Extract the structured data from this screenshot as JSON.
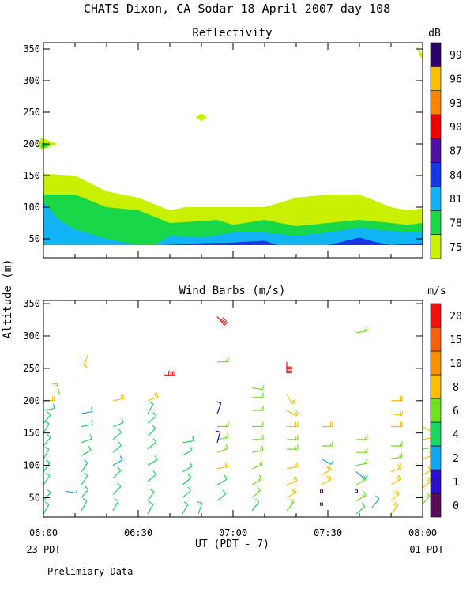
{
  "title": "CHATS Dixon, CA  Sodar  18 April 2007  day 108",
  "ylabel": "Altitude (m)",
  "xlabel": "UT  (PDT - 7)",
  "footer_left": "23 PDT",
  "footer_right": "01 PDT",
  "note": "Prelimiary Data",
  "xticks": [
    "06:00",
    "06:30",
    "07:00",
    "07:30",
    "08:00"
  ],
  "chart_data": [
    {
      "type": "heatmap",
      "title": "Reflectivity",
      "x_range": [
        0,
        120
      ],
      "ylim": [
        20,
        360
      ],
      "yticks": [
        50,
        100,
        150,
        200,
        250,
        300,
        350
      ],
      "colorbar": {
        "unit": "dB",
        "labels": [
          "75",
          "78",
          "81",
          "84",
          "87",
          "90",
          "93",
          "96",
          "99"
        ],
        "colors": [
          "#c8f000",
          "#18d848",
          "#10b4f4",
          "#1838e8",
          "#5010a0",
          "#f00000",
          "#f88400",
          "#f8c000",
          "#30006a"
        ]
      },
      "layers": [
        {
          "class": "75",
          "x": [
            0,
            10,
            20,
            30,
            40,
            45,
            50,
            55,
            60,
            70,
            80,
            90,
            100,
            110,
            115,
            120
          ],
          "top": [
            153,
            150,
            125,
            115,
            95,
            100,
            100,
            100,
            100,
            100,
            115,
            120,
            120,
            100,
            95,
            98
          ]
        },
        {
          "class": "78",
          "x": [
            0,
            10,
            20,
            30,
            40,
            50,
            55,
            60,
            70,
            80,
            90,
            100,
            110,
            115,
            120
          ],
          "top": [
            120,
            120,
            100,
            95,
            75,
            78,
            80,
            72,
            80,
            70,
            75,
            80,
            75,
            72,
            75
          ]
        },
        {
          "class": "81",
          "x": [
            0,
            5,
            10,
            20,
            30,
            35,
            40,
            50,
            60,
            70,
            80,
            90,
            100,
            110,
            120
          ],
          "top": [
            108,
            80,
            65,
            50,
            40,
            40,
            55,
            52,
            60,
            60,
            55,
            60,
            68,
            62,
            60
          ]
        },
        {
          "class": "84",
          "x": [
            38,
            50,
            60,
            70,
            74,
            90,
            100,
            105,
            110,
            115,
            120
          ],
          "top": [
            40,
            43,
            44,
            47,
            40,
            40,
            52,
            45,
            40,
            42,
            43
          ]
        }
      ],
      "patches": [
        {
          "class": "75",
          "x": 0,
          "y": 200
        },
        {
          "class": "78",
          "x": 0,
          "y": 198
        },
        {
          "class": "75",
          "x": 50,
          "y": 242
        },
        {
          "class": "75",
          "x": 119,
          "y": 345
        }
      ]
    },
    {
      "type": "wind_barbs",
      "title": "Wind Barbs (m/s)",
      "x_range": [
        0,
        120
      ],
      "ylim": [
        20,
        355
      ],
      "yticks": [
        50,
        100,
        150,
        200,
        250,
        300,
        350
      ],
      "colorbar": {
        "unit": "m/s",
        "labels": [
          "0",
          "1",
          "2",
          "4",
          "6",
          "8",
          "10",
          "15",
          "20"
        ],
        "colors": [
          "#5a0a5a",
          "#2a10c8",
          "#10a8f0",
          "#18d860",
          "#70e020",
          "#f8c000",
          "#f89000",
          "#f86010",
          "#f01010"
        ],
        "bounds": [
          0,
          1,
          2,
          4,
          6,
          8,
          10,
          15,
          20,
          24
        ]
      },
      "barbs": [
        {
          "t": 0,
          "z": 25,
          "s": 4,
          "d": 30
        },
        {
          "t": 0,
          "z": 45,
          "s": 5,
          "d": 40
        },
        {
          "t": 0,
          "z": 70,
          "s": 5,
          "d": 35
        },
        {
          "t": 0,
          "z": 90,
          "s": 4,
          "d": 35
        },
        {
          "t": 0,
          "z": 110,
          "s": 4,
          "d": 30
        },
        {
          "t": 0,
          "z": 130,
          "s": 5,
          "d": 40
        },
        {
          "t": 0,
          "z": 150,
          "s": 4,
          "d": 30
        },
        {
          "t": 0,
          "z": 165,
          "s": 4,
          "d": 40
        },
        {
          "t": 0,
          "z": 185,
          "s": 5,
          "d": 80
        },
        {
          "t": 0,
          "z": 200,
          "s": 8,
          "d": 90
        },
        {
          "t": 5,
          "z": 210,
          "s": 6,
          "d": 350
        },
        {
          "t": 7,
          "z": 60,
          "s": 2.5,
          "d": 100
        },
        {
          "t": 12,
          "z": 30,
          "s": 5,
          "d": 30
        },
        {
          "t": 12,
          "z": 50,
          "s": 5,
          "d": 40
        },
        {
          "t": 12,
          "z": 70,
          "s": 4,
          "d": 35
        },
        {
          "t": 12,
          "z": 90,
          "s": 4,
          "d": 35
        },
        {
          "t": 12,
          "z": 115,
          "s": 4,
          "d": 60
        },
        {
          "t": 12,
          "z": 135,
          "s": 4,
          "d": 70
        },
        {
          "t": 12,
          "z": 160,
          "s": 4,
          "d": 80
        },
        {
          "t": 12,
          "z": 180,
          "s": 3,
          "d": 80
        },
        {
          "t": 14,
          "z": 270,
          "s": 9,
          "d": 200
        },
        {
          "t": 22,
          "z": 30,
          "s": 4,
          "d": 30
        },
        {
          "t": 22,
          "z": 55,
          "s": 5,
          "d": 45
        },
        {
          "t": 22,
          "z": 80,
          "s": 4,
          "d": 45
        },
        {
          "t": 22,
          "z": 100,
          "s": 3,
          "d": 60
        },
        {
          "t": 22,
          "z": 120,
          "s": 4,
          "d": 50
        },
        {
          "t": 22,
          "z": 140,
          "s": 5,
          "d": 50
        },
        {
          "t": 22,
          "z": 160,
          "s": 5,
          "d": 70
        },
        {
          "t": 22,
          "z": 200,
          "s": 8,
          "d": 80
        },
        {
          "t": 33,
          "z": 25,
          "s": 4,
          "d": 30
        },
        {
          "t": 33,
          "z": 45,
          "s": 4,
          "d": 35
        },
        {
          "t": 33,
          "z": 75,
          "s": 4,
          "d": 50
        },
        {
          "t": 33,
          "z": 100,
          "s": 5,
          "d": 60
        },
        {
          "t": 33,
          "z": 125,
          "s": 5,
          "d": 50
        },
        {
          "t": 33,
          "z": 145,
          "s": 5,
          "d": 45
        },
        {
          "t": 33,
          "z": 165,
          "s": 5,
          "d": 50
        },
        {
          "t": 33,
          "z": 180,
          "s": 5,
          "d": 30
        },
        {
          "t": 33,
          "z": 200,
          "s": 8,
          "d": 70
        },
        {
          "t": 38,
          "z": 240,
          "s": 23,
          "d": 95
        },
        {
          "t": 44,
          "z": 25,
          "s": 4,
          "d": 30
        },
        {
          "t": 44,
          "z": 50,
          "s": 5,
          "d": 50
        },
        {
          "t": 44,
          "z": 70,
          "s": 4,
          "d": 50
        },
        {
          "t": 44,
          "z": 90,
          "s": 4,
          "d": 60
        },
        {
          "t": 44,
          "z": 115,
          "s": 5,
          "d": 60
        },
        {
          "t": 44,
          "z": 135,
          "s": 5,
          "d": 80
        },
        {
          "t": 49,
          "z": 25,
          "s": 4,
          "d": 20
        },
        {
          "t": 55,
          "z": 45,
          "s": 5,
          "d": 50
        },
        {
          "t": 55,
          "z": 70,
          "s": 5,
          "d": 60
        },
        {
          "t": 55,
          "z": 95,
          "s": 8,
          "d": 80
        },
        {
          "t": 55,
          "z": 120,
          "s": 6,
          "d": 70
        },
        {
          "t": 55,
          "z": 140,
          "s": 6,
          "d": 80
        },
        {
          "t": 55,
          "z": 160,
          "s": 6,
          "d": 90
        },
        {
          "t": 55,
          "z": 180,
          "s": 1.5,
          "d": 20
        },
        {
          "t": 55,
          "z": 260,
          "s": 7,
          "d": 90
        },
        {
          "t": 55,
          "z": 330,
          "s": 20,
          "d": 140
        },
        {
          "t": 55,
          "z": 135,
          "s": 1.5,
          "d": 15
        },
        {
          "t": 66,
          "z": 30,
          "s": 5,
          "d": 40
        },
        {
          "t": 66,
          "z": 50,
          "s": 6,
          "d": 50
        },
        {
          "t": 66,
          "z": 70,
          "s": 6,
          "d": 60
        },
        {
          "t": 66,
          "z": 95,
          "s": 7,
          "d": 70
        },
        {
          "t": 66,
          "z": 120,
          "s": 7,
          "d": 80
        },
        {
          "t": 66,
          "z": 140,
          "s": 7,
          "d": 90
        },
        {
          "t": 66,
          "z": 160,
          "s": 7,
          "d": 90
        },
        {
          "t": 66,
          "z": 185,
          "s": 6,
          "d": 90
        },
        {
          "t": 66,
          "z": 205,
          "s": 7,
          "d": 90
        },
        {
          "t": 66,
          "z": 220,
          "s": 6,
          "d": 100
        },
        {
          "t": 77,
          "z": 30,
          "s": 7,
          "d": 40
        },
        {
          "t": 77,
          "z": 50,
          "s": 8,
          "d": 60
        },
        {
          "t": 77,
          "z": 70,
          "s": 8,
          "d": 70
        },
        {
          "t": 77,
          "z": 95,
          "s": 8,
          "d": 80
        },
        {
          "t": 77,
          "z": 125,
          "s": 7,
          "d": 90
        },
        {
          "t": 77,
          "z": 140,
          "s": 7,
          "d": 90
        },
        {
          "t": 77,
          "z": 160,
          "s": 8,
          "d": 90
        },
        {
          "t": 77,
          "z": 185,
          "s": 8,
          "d": 120
        },
        {
          "t": 77,
          "z": 210,
          "s": 8,
          "d": 150
        },
        {
          "t": 77,
          "z": 260,
          "s": 22,
          "d": 180
        },
        {
          "t": 88,
          "z": 70,
          "s": 8,
          "d": 60
        },
        {
          "t": 88,
          "z": 85,
          "s": 8,
          "d": 60
        },
        {
          "t": 88,
          "z": 110,
          "s": 3,
          "d": 120
        },
        {
          "t": 88,
          "z": 130,
          "s": 6,
          "d": 90
        },
        {
          "t": 88,
          "z": 160,
          "s": 8,
          "d": 90
        },
        {
          "t": 88,
          "z": 40,
          "s": 0.5,
          "d": 0
        },
        {
          "t": 88,
          "z": 60,
          "s": 0.5,
          "d": 0
        },
        {
          "t": 99,
          "z": 25,
          "s": 5,
          "d": 50
        },
        {
          "t": 99,
          "z": 45,
          "s": 6,
          "d": 60
        },
        {
          "t": 99,
          "z": 70,
          "s": 6,
          "d": 60
        },
        {
          "t": 99,
          "z": 90,
          "s": 3,
          "d": 130
        },
        {
          "t": 99,
          "z": 100,
          "s": 6,
          "d": 80
        },
        {
          "t": 99,
          "z": 120,
          "s": 6,
          "d": 90
        },
        {
          "t": 99,
          "z": 140,
          "s": 6,
          "d": 90
        },
        {
          "t": 99,
          "z": 60,
          "s": 0.5,
          "d": 0
        },
        {
          "t": 99,
          "z": 305,
          "s": 6,
          "d": 80
        },
        {
          "t": 110,
          "z": 25,
          "s": 8,
          "d": 40
        },
        {
          "t": 110,
          "z": 45,
          "s": 8,
          "d": 50
        },
        {
          "t": 110,
          "z": 70,
          "s": 8,
          "d": 60
        },
        {
          "t": 110,
          "z": 90,
          "s": 8,
          "d": 70
        },
        {
          "t": 110,
          "z": 110,
          "s": 6,
          "d": 80
        },
        {
          "t": 110,
          "z": 130,
          "s": 6,
          "d": 90
        },
        {
          "t": 110,
          "z": 160,
          "s": 8,
          "d": 90
        },
        {
          "t": 110,
          "z": 180,
          "s": 8,
          "d": 100
        },
        {
          "t": 110,
          "z": 200,
          "s": 8,
          "d": 90
        },
        {
          "t": 104,
          "z": 35,
          "s": 3,
          "d": 40
        },
        {
          "t": 120,
          "z": 40,
          "s": 7,
          "d": 40
        },
        {
          "t": 120,
          "z": 65,
          "s": 8,
          "d": 50
        },
        {
          "t": 120,
          "z": 85,
          "s": 8,
          "d": 60
        },
        {
          "t": 120,
          "z": 110,
          "s": 8,
          "d": 70
        },
        {
          "t": 120,
          "z": 125,
          "s": 6,
          "d": 80
        },
        {
          "t": 120,
          "z": 140,
          "s": 8,
          "d": 80
        },
        {
          "t": 120,
          "z": 160,
          "s": 8,
          "d": 120
        }
      ]
    }
  ]
}
